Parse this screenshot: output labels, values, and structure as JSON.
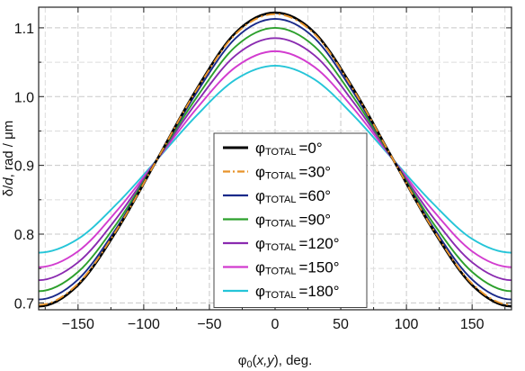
{
  "chart_data": {
    "type": "line",
    "xlabel_main": "φ",
    "xlabel_sub": "0",
    "xlabel_rest": "(x,y), deg.",
    "xlabel_italic": "x,y",
    "ylabel_main": "δ/",
    "ylabel_italic": "d",
    "ylabel_rest": ", rad / μm",
    "xlim": [
      -180,
      180
    ],
    "ylim": [
      0.69,
      1.13
    ],
    "x_ticks": [
      -150,
      -100,
      -50,
      0,
      50,
      100,
      150
    ],
    "x_tick_labels": [
      "−150",
      "−100",
      "−50",
      "0",
      "50",
      "100",
      "150"
    ],
    "y_ticks": [
      0.7,
      0.8,
      0.9,
      1.0,
      1.1
    ],
    "y_tick_labels": [
      "0.7",
      "0.8",
      "0.9",
      "1.0",
      "1.1"
    ],
    "grid": true,
    "legend_position": "center-bottom",
    "x": [
      -180,
      -150,
      -120,
      -90,
      -60,
      -30,
      0,
      30,
      60,
      90,
      120,
      150,
      180
    ],
    "series": [
      {
        "name_symbol": "φ",
        "name_sub": "TOTAL",
        "name_value": "=0°",
        "color": "#000000",
        "dash": "solid",
        "values": [
          0.695,
          0.726,
          0.807,
          0.908,
          1.01,
          1.093,
          1.122,
          1.093,
          1.01,
          0.908,
          0.807,
          0.726,
          0.695
        ]
      },
      {
        "name_symbol": "φ",
        "name_sub": "TOTAL",
        "name_value": "=30°",
        "color": "#e8932a",
        "dash": "dashdot",
        "values": [
          0.697,
          0.728,
          0.808,
          0.908,
          1.009,
          1.091,
          1.12,
          1.091,
          1.009,
          0.908,
          0.808,
          0.728,
          0.697
        ]
      },
      {
        "name_symbol": "φ",
        "name_sub": "TOTAL",
        "name_value": "=60°",
        "color": "#1a2a8a",
        "dash": "solid",
        "values": [
          0.705,
          0.734,
          0.811,
          0.908,
          1.005,
          1.085,
          1.113,
          1.085,
          1.005,
          0.908,
          0.811,
          0.734,
          0.705
        ]
      },
      {
        "name_symbol": "φ",
        "name_sub": "TOTAL",
        "name_value": "=90°",
        "color": "#2ca02c",
        "dash": "solid",
        "values": [
          0.717,
          0.745,
          0.817,
          0.908,
          0.998,
          1.073,
          1.1,
          1.073,
          0.998,
          0.908,
          0.817,
          0.745,
          0.717
        ]
      },
      {
        "name_symbol": "φ",
        "name_sub": "TOTAL",
        "name_value": "=120°",
        "color": "#8a2ab0",
        "dash": "solid",
        "values": [
          0.733,
          0.759,
          0.825,
          0.908,
          0.991,
          1.06,
          1.085,
          1.06,
          0.991,
          0.908,
          0.825,
          0.759,
          0.733
        ]
      },
      {
        "name_symbol": "φ",
        "name_sub": "TOTAL",
        "name_value": "=150°",
        "color": "#d23ccf",
        "dash": "solid",
        "values": [
          0.752,
          0.775,
          0.835,
          0.908,
          0.982,
          1.043,
          1.066,
          1.043,
          0.982,
          0.908,
          0.835,
          0.775,
          0.752
        ]
      },
      {
        "name_symbol": "φ",
        "name_sub": "TOTAL",
        "name_value": "=180°",
        "color": "#25c5d8",
        "dash": "solid",
        "values": [
          0.773,
          0.793,
          0.845,
          0.908,
          0.972,
          1.025,
          1.045,
          1.025,
          0.972,
          0.908,
          0.845,
          0.793,
          0.773
        ]
      }
    ]
  }
}
